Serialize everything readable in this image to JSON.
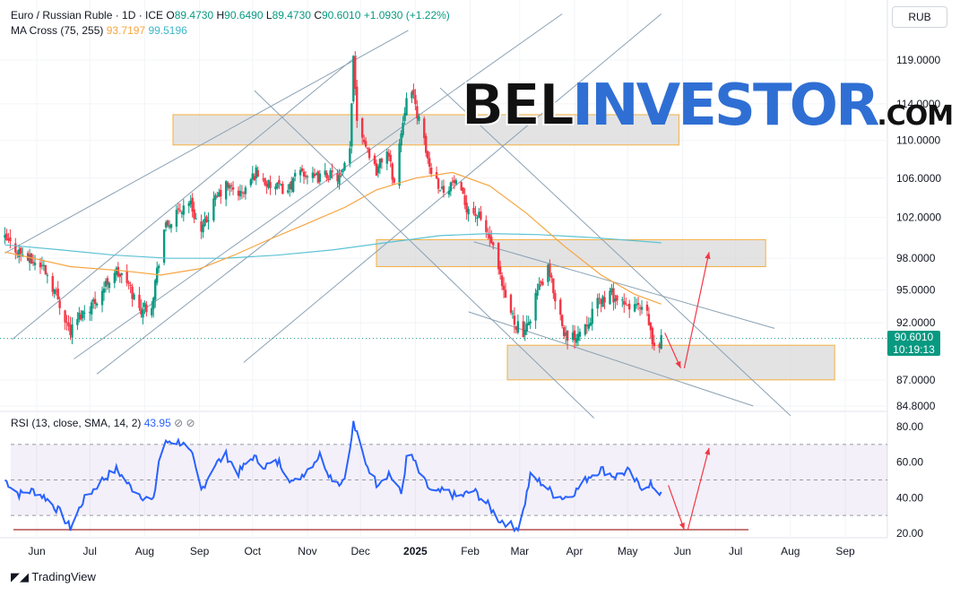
{
  "header": {
    "symbol": "Euro / Russian Ruble · 1D · ICE",
    "open_label": "O",
    "open": "89.4730",
    "high_label": "H",
    "high": "90.6490",
    "low_label": "L",
    "low": "89.4730",
    "close_label": "C",
    "close": "90.6010",
    "change": "+1.0930 (+1.22%)",
    "indicator": "MA Cross (75, 255)",
    "ma_fast": "93.7197",
    "ma_slow": "99.5196",
    "currency": "RUB"
  },
  "last_price": {
    "value": "90.6010",
    "countdown": "10:19:13"
  },
  "watermark": {
    "part1": "BEL",
    "part2": "INVESTOR",
    "part3": ".COM"
  },
  "rsi_header": {
    "label": "RSI (13, close, SMA, 14, 2)",
    "value": "43.95"
  },
  "footer": {
    "brand": "TradingView"
  },
  "colors": {
    "up": "#089981",
    "down": "#f23645",
    "ma_fast": "#f7a541",
    "ma_slow": "#5cc2d4",
    "rsi": "#2962ff",
    "annot": "#f23645"
  },
  "chart_data": [
    {
      "type": "candlestick",
      "title": "Euro / Russian Ruble · 1D · ICE",
      "price_ticks": [
        "119.0000",
        "114.0000",
        "110.0000",
        "106.0000",
        "102.0000",
        "98.0000",
        "95.0000",
        "92.0000",
        "87.0000",
        "84.8000"
      ],
      "time_ticks": [
        "Jun",
        "Jul",
        "Aug",
        "Sep",
        "Oct",
        "Nov",
        "Dec",
        "2025",
        "Feb",
        "Mar",
        "Apr",
        "May",
        "Jun",
        "Jul",
        "Aug",
        "Sep"
      ],
      "anchors": [
        {
          "d": "2024-05-14",
          "c": 99.8
        },
        {
          "d": "2024-05-28",
          "c": 97.8
        },
        {
          "d": "2024-06-05",
          "c": 97.2
        },
        {
          "d": "2024-06-12",
          "c": 94.6
        },
        {
          "d": "2024-06-20",
          "c": 91.2
        },
        {
          "d": "2024-06-25",
          "c": 92.6
        },
        {
          "d": "2024-07-05",
          "c": 94.2
        },
        {
          "d": "2024-07-15",
          "c": 96.8
        },
        {
          "d": "2024-07-22",
          "c": 95.8
        },
        {
          "d": "2024-07-29",
          "c": 93.2
        },
        {
          "d": "2024-08-05",
          "c": 93.8
        },
        {
          "d": "2024-08-12",
          "c": 100.8
        },
        {
          "d": "2024-08-19",
          "c": 102.2
        },
        {
          "d": "2024-08-26",
          "c": 103.8
        },
        {
          "d": "2024-09-02",
          "c": 100.4
        },
        {
          "d": "2024-09-09",
          "c": 103.5
        },
        {
          "d": "2024-09-16",
          "c": 105.2
        },
        {
          "d": "2024-09-25",
          "c": 104.3
        },
        {
          "d": "2024-10-03",
          "c": 106.7
        },
        {
          "d": "2024-10-10",
          "c": 105.2
        },
        {
          "d": "2024-10-21",
          "c": 104.8
        },
        {
          "d": "2024-10-28",
          "c": 106.8
        },
        {
          "d": "2024-11-05",
          "c": 105.9
        },
        {
          "d": "2024-11-12",
          "c": 106.4
        },
        {
          "d": "2024-11-20",
          "c": 106.0
        },
        {
          "d": "2024-11-25",
          "c": 108.8
        },
        {
          "d": "2024-11-27",
          "c": 119.2
        },
        {
          "d": "2024-11-29",
          "c": 112.5
        },
        {
          "d": "2024-12-04",
          "c": 109.5
        },
        {
          "d": "2024-12-10",
          "c": 106.8
        },
        {
          "d": "2024-12-16",
          "c": 109.0
        },
        {
          "d": "2024-12-20",
          "c": 105.5
        },
        {
          "d": "2024-12-26",
          "c": 113.5
        },
        {
          "d": "2024-12-28",
          "c": 116.8
        },
        {
          "d": "2025-01-03",
          "c": 112.2
        },
        {
          "d": "2025-01-09",
          "c": 107.2
        },
        {
          "d": "2025-01-16",
          "c": 104.8
        },
        {
          "d": "2025-01-23",
          "c": 105.6
        },
        {
          "d": "2025-01-30",
          "c": 103.1
        },
        {
          "d": "2025-02-06",
          "c": 102.0
        },
        {
          "d": "2025-02-13",
          "c": 99.5
        },
        {
          "d": "2025-02-20",
          "c": 94.5
        },
        {
          "d": "2025-02-26",
          "c": 92.2
        },
        {
          "d": "2025-03-04",
          "c": 90.8
        },
        {
          "d": "2025-03-10",
          "c": 94.6
        },
        {
          "d": "2025-03-17",
          "c": 96.8
        },
        {
          "d": "2025-03-22",
          "c": 93.8
        },
        {
          "d": "2025-03-28",
          "c": 90.2
        },
        {
          "d": "2025-04-04",
          "c": 91.4
        },
        {
          "d": "2025-04-10",
          "c": 92.6
        },
        {
          "d": "2025-04-15",
          "c": 94.0
        },
        {
          "d": "2025-04-22",
          "c": 94.6
        },
        {
          "d": "2025-04-29",
          "c": 93.4
        },
        {
          "d": "2025-05-05",
          "c": 93.6
        },
        {
          "d": "2025-05-12",
          "c": 92.6
        },
        {
          "d": "2025-05-16",
          "c": 89.5
        },
        {
          "d": "2025-05-20",
          "c": 90.6
        }
      ],
      "ma_fast": [
        {
          "d": "2024-05-14",
          "v": 98.6
        },
        {
          "d": "2024-06-20",
          "v": 97.2
        },
        {
          "d": "2024-07-20",
          "v": 96.8
        },
        {
          "d": "2024-08-10",
          "v": 96.4
        },
        {
          "d": "2024-09-01",
          "v": 97.0
        },
        {
          "d": "2024-09-22",
          "v": 98.4
        },
        {
          "d": "2024-10-10",
          "v": 99.8
        },
        {
          "d": "2024-11-01",
          "v": 101.4
        },
        {
          "d": "2024-11-22",
          "v": 103.0
        },
        {
          "d": "2024-12-10",
          "v": 104.8
        },
        {
          "d": "2025-01-01",
          "v": 106.0
        },
        {
          "d": "2025-01-22",
          "v": 106.6
        },
        {
          "d": "2025-02-12",
          "v": 105.2
        },
        {
          "d": "2025-03-05",
          "v": 102.4
        },
        {
          "d": "2025-03-26",
          "v": 99.2
        },
        {
          "d": "2025-04-16",
          "v": 96.4
        },
        {
          "d": "2025-05-05",
          "v": 94.6
        },
        {
          "d": "2025-05-20",
          "v": 93.7
        }
      ],
      "ma_slow": [
        {
          "d": "2024-05-14",
          "v": 99.3
        },
        {
          "d": "2024-06-15",
          "v": 98.8
        },
        {
          "d": "2024-07-15",
          "v": 98.3
        },
        {
          "d": "2024-08-15",
          "v": 98.0
        },
        {
          "d": "2024-09-15",
          "v": 98.0
        },
        {
          "d": "2024-10-15",
          "v": 98.3
        },
        {
          "d": "2024-11-15",
          "v": 98.8
        },
        {
          "d": "2024-12-15",
          "v": 99.5
        },
        {
          "d": "2025-01-15",
          "v": 100.2
        },
        {
          "d": "2025-02-12",
          "v": 100.4
        },
        {
          "d": "2025-03-12",
          "v": 100.3
        },
        {
          "d": "2025-04-12",
          "v": 100.0
        },
        {
          "d": "2025-05-20",
          "v": 99.5
        }
      ],
      "zones": [
        {
          "from": "2024-08-17",
          "to": "2025-05-30",
          "low": 109.5,
          "high": 112.8
        },
        {
          "from": "2024-12-10",
          "to": "2025-07-18",
          "low": 97.2,
          "high": 99.8
        },
        {
          "from": "2025-02-22",
          "to": "2025-08-26",
          "low": 87.0,
          "high": 90.0
        }
      ],
      "trendlines": [
        {
          "from": [
            "2024-05-14",
            98.5
          ],
          "to": [
            "2024-12-28",
            122.5
          ]
        },
        {
          "from": [
            "2024-05-18",
            90.5
          ],
          "to": [
            "2024-11-29",
            119.5
          ]
        },
        {
          "from": [
            "2024-06-22",
            88.8
          ],
          "to": [
            "2025-03-25",
            124.5
          ]
        },
        {
          "from": [
            "2024-07-05",
            87.5
          ],
          "to": [
            "2024-12-22",
            110.0
          ]
        },
        {
          "from": [
            "2024-09-26",
            88.5
          ],
          "to": [
            "2025-05-20",
            124.5
          ]
        },
        {
          "from": [
            "2024-10-02",
            115.5
          ],
          "to": [
            "2025-04-12",
            83.8
          ]
        },
        {
          "from": [
            "2025-01-15",
            115.8
          ],
          "to": [
            "2025-08-01",
            84.0
          ]
        },
        {
          "from": [
            "2025-02-03",
            99.6
          ],
          "to": [
            "2025-07-23",
            91.5
          ]
        },
        {
          "from": [
            "2025-01-31",
            93.0
          ],
          "to": [
            "2025-07-11",
            84.8
          ]
        }
      ],
      "arrows": [
        {
          "from": [
            "2025-05-22",
            91.1
          ],
          "to": [
            "2025-05-31",
            88.0
          ]
        },
        {
          "from": [
            "2025-06-02",
            88.0
          ],
          "to": [
            "2025-06-16",
            98.6
          ]
        }
      ],
      "ylim": [
        84.0,
        122.5
      ],
      "log_scale": true
    },
    {
      "type": "line",
      "title": "RSI (13, close, SMA, 14, 2)",
      "ylim": [
        15,
        85
      ],
      "y_ticks": [
        "80.00",
        "60.00",
        "40.00",
        "20.00"
      ],
      "band": [
        30,
        70
      ],
      "midline": 50,
      "support_line": 22,
      "anchors": [
        {
          "d": "2024-05-14",
          "v": 50
        },
        {
          "d": "2024-05-22",
          "v": 42
        },
        {
          "d": "2024-05-30",
          "v": 44
        },
        {
          "d": "2024-06-06",
          "v": 40
        },
        {
          "d": "2024-06-14",
          "v": 32
        },
        {
          "d": "2024-06-20",
          "v": 23
        },
        {
          "d": "2024-06-27",
          "v": 38
        },
        {
          "d": "2024-07-08",
          "v": 50
        },
        {
          "d": "2024-07-16",
          "v": 56
        },
        {
          "d": "2024-07-24",
          "v": 46
        },
        {
          "d": "2024-08-01",
          "v": 40
        },
        {
          "d": "2024-08-06",
          "v": 38
        },
        {
          "d": "2024-08-10",
          "v": 68
        },
        {
          "d": "2024-08-15",
          "v": 72
        },
        {
          "d": "2024-08-22",
          "v": 71
        },
        {
          "d": "2024-08-28",
          "v": 63
        },
        {
          "d": "2024-09-02",
          "v": 44
        },
        {
          "d": "2024-09-09",
          "v": 58
        },
        {
          "d": "2024-09-16",
          "v": 64
        },
        {
          "d": "2024-09-23",
          "v": 54
        },
        {
          "d": "2024-10-01",
          "v": 63
        },
        {
          "d": "2024-10-08",
          "v": 58
        },
        {
          "d": "2024-10-16",
          "v": 60
        },
        {
          "d": "2024-10-24",
          "v": 48
        },
        {
          "d": "2024-11-01",
          "v": 56
        },
        {
          "d": "2024-11-08",
          "v": 64
        },
        {
          "d": "2024-11-14",
          "v": 52
        },
        {
          "d": "2024-11-20",
          "v": 48
        },
        {
          "d": "2024-11-24",
          "v": 58
        },
        {
          "d": "2024-11-27",
          "v": 82
        },
        {
          "d": "2024-12-03",
          "v": 62
        },
        {
          "d": "2024-12-10",
          "v": 48
        },
        {
          "d": "2024-12-17",
          "v": 54
        },
        {
          "d": "2024-12-24",
          "v": 42
        },
        {
          "d": "2024-12-28",
          "v": 68
        },
        {
          "d": "2025-01-04",
          "v": 52
        },
        {
          "d": "2025-01-11",
          "v": 42
        },
        {
          "d": "2025-01-18",
          "v": 44
        },
        {
          "d": "2025-01-25",
          "v": 40
        },
        {
          "d": "2025-02-03",
          "v": 44
        },
        {
          "d": "2025-02-11",
          "v": 36
        },
        {
          "d": "2025-02-17",
          "v": 28
        },
        {
          "d": "2025-02-25",
          "v": 24
        },
        {
          "d": "2025-03-01",
          "v": 23
        },
        {
          "d": "2025-03-07",
          "v": 52
        },
        {
          "d": "2025-03-14",
          "v": 48
        },
        {
          "d": "2025-03-20",
          "v": 42
        },
        {
          "d": "2025-03-26",
          "v": 40
        },
        {
          "d": "2025-04-02",
          "v": 44
        },
        {
          "d": "2025-04-09",
          "v": 52
        },
        {
          "d": "2025-04-16",
          "v": 56
        },
        {
          "d": "2025-04-24",
          "v": 52
        },
        {
          "d": "2025-05-01",
          "v": 55
        },
        {
          "d": "2025-05-08",
          "v": 46
        },
        {
          "d": "2025-05-14",
          "v": 48
        },
        {
          "d": "2025-05-17",
          "v": 40
        },
        {
          "d": "2025-05-20",
          "v": 44
        }
      ],
      "arrows": [
        {
          "from": [
            "2025-05-24",
            47
          ],
          "to": [
            "2025-06-02",
            22
          ]
        },
        {
          "from": [
            "2025-06-04",
            22
          ],
          "to": [
            "2025-06-16",
            68
          ]
        }
      ],
      "current": 43.95
    }
  ]
}
